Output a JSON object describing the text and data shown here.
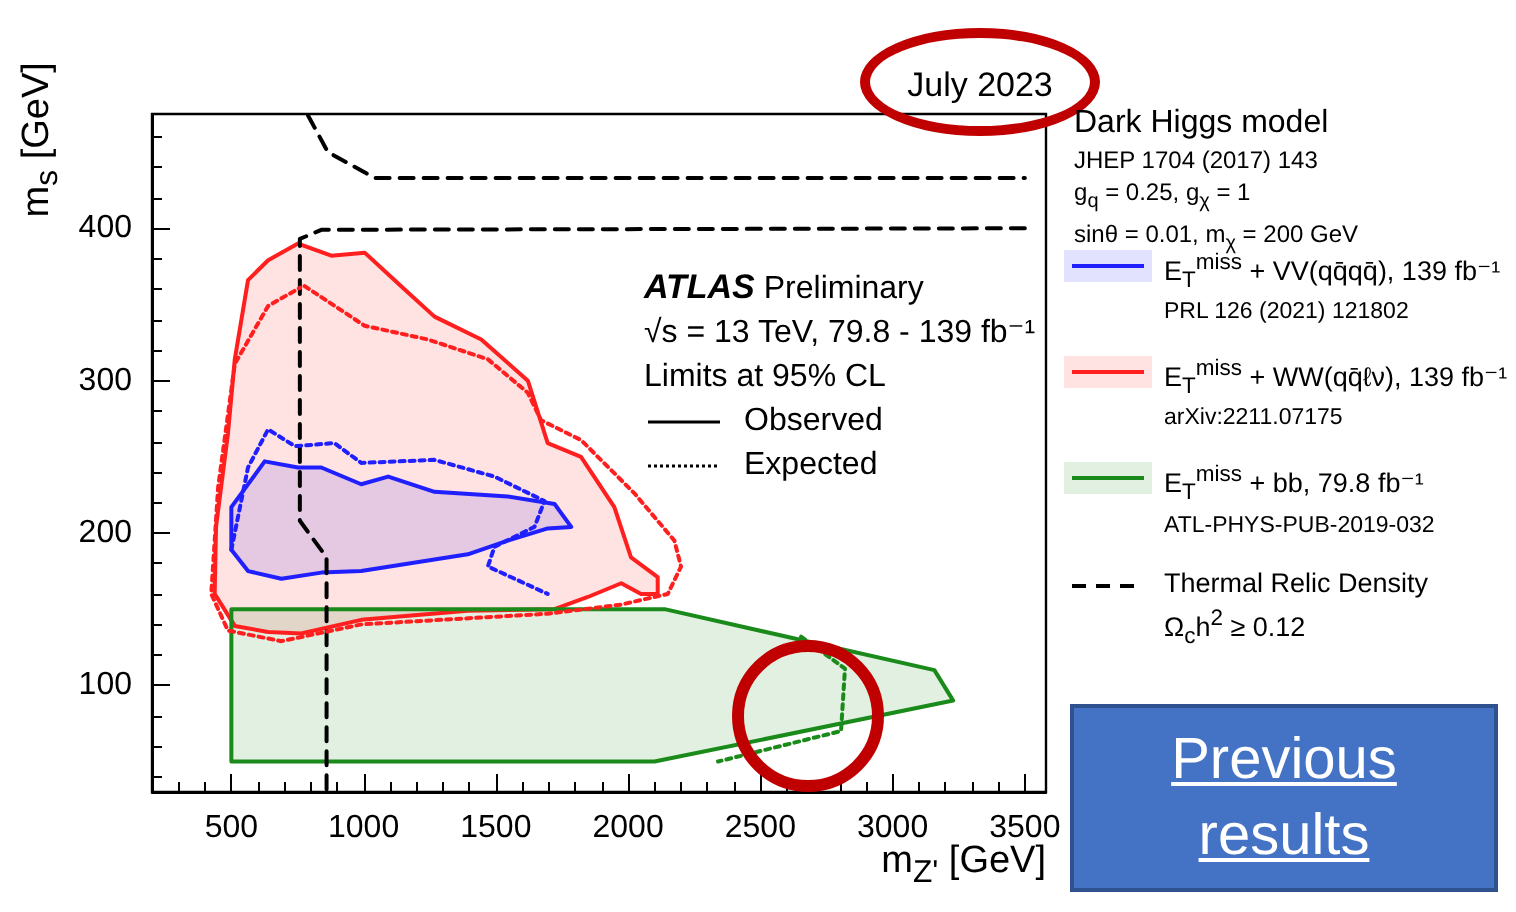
{
  "chart_data": {
    "type": "area",
    "xlabel": "m$_{Z'}$ [GeV]",
    "ylabel": "m$_{s}$ [GeV]",
    "xlim": [
      200,
      3580
    ],
    "xticks": [
      500,
      1000,
      1500,
      2000,
      2500,
      3000,
      3500
    ],
    "ylim": [
      30,
      475
    ],
    "yticks": [
      100,
      200,
      300,
      400
    ],
    "grid": false,
    "legend": "right",
    "series": [
      {
        "name": "E$_{T}$$^{miss}$ + VV(qq̄qq̄), 139 fb⁻¹",
        "color": "#1f1fff",
        "line_style": "solid",
        "x": [
          500,
          626,
          752,
          840,
          991,
          1093,
          1268,
          1545,
          1722,
          1785,
          1696,
          1545,
          1394,
          991,
          840,
          689,
          563,
          500
        ],
        "values": [
          217,
          247,
          243,
          243,
          232,
          237,
          227,
          224,
          219,
          204,
          203,
          195,
          186,
          175,
          174,
          170,
          175,
          189
        ]
      },
      {
        "name": "E$_{T}$$^{miss}$ + WW(qq̄ℓν), 139 fb⁻¹",
        "color": "#ff1f1f",
        "line_style": "solid",
        "x": [
          563,
          639,
          752,
          878,
          1004,
          1142,
          1268,
          1445,
          1621,
          1696,
          1822,
          1948,
          2011,
          2112,
          2112,
          2049,
          1974,
          1848,
          1722,
          1394,
          991,
          764,
          639,
          513,
          437,
          442,
          487,
          513
        ],
        "values": [
          366,
          379,
          390,
          382,
          384,
          362,
          342,
          327,
          300,
          259,
          250,
          217,
          184,
          171,
          160,
          160,
          167,
          158,
          150,
          149,
          143,
          134,
          135,
          139,
          160,
          204,
          265,
          314
        ]
      },
      {
        "name": "E$_{T}$$^{miss}$ + bb, 79.8 fb⁻¹",
        "color": "#1a8a1a",
        "line_style": "solid",
        "x": [
          500,
          2138,
          3158,
          3229,
          2100,
          500
        ],
        "values": [
          150,
          150,
          110,
          90,
          50,
          50
        ]
      },
      {
        "name": "Thermal Relic Density\nΩ$_{c}$h$^{2}$ ≥ 0.12",
        "type": "line",
        "color": "#000000",
        "line_style": "dashed",
        "x": [
          790,
          865,
          1042,
          3500
        ],
        "values": [
          474,
          450,
          433,
          433
        ]
      },
      {
        "type": "line",
        "color": "#000000",
        "line_style": "dashed",
        "x": [
          3500,
          840,
          759,
          759,
          860,
          860
        ],
        "values": [
          400,
          399,
          393,
          208,
          184,
          30
        ]
      },
      {
        "type": "line",
        "color": "#1f1fff",
        "line_style": "dotted",
        "x": [
          500,
          563,
          639,
          740,
          890,
          991,
          1268,
          1495,
          1684,
          1646,
          1495,
          1470,
          1696
        ],
        "values": [
          189,
          243,
          268,
          257,
          259,
          246,
          248,
          237,
          221,
          204,
          191,
          178,
          160
        ]
      },
      {
        "type": "line",
        "color": "#ff1f1f",
        "line_style": "dotted",
        "x": [
          777,
          1004,
          1243,
          1470,
          1621,
          1671,
          1822,
          2024,
          2175,
          2200,
          2150,
          1974,
          1696,
          991,
          689,
          487,
          424,
          450,
          513,
          639,
          760
        ],
        "values": [
          362,
          336,
          327,
          314,
          292,
          274,
          261,
          226,
          195,
          178,
          160,
          153,
          147,
          140,
          129,
          136,
          160,
          230,
          311,
          349,
          361
        ]
      },
      {
        "type": "line",
        "color": "#1a8a1a",
        "line_style": "dotted",
        "x": [
          2654,
          2820,
          2805,
          2340
        ],
        "values": [
          132,
          111,
          70,
          50
        ]
      }
    ],
    "annotations": [
      "July 2023",
      "Dark Higgs model",
      "JHEP 1704 (2017) 143",
      "g$_{q}$ = 0.25, g$_{χ}$ = 1",
      "sinθ = 0.01, m$_{χ}$ = 200 GeV",
      "PRL 126 (2021) 121802",
      "arXiv:2211.07175",
      "ATL-PHYS-PUB-2019-032",
      "ATLAS Preliminary",
      "√s = 13 TeV, 79.8 - 139 fb⁻¹",
      "Limits at 95% CL",
      "Observed",
      "Expected",
      "Previous results"
    ]
  }
}
